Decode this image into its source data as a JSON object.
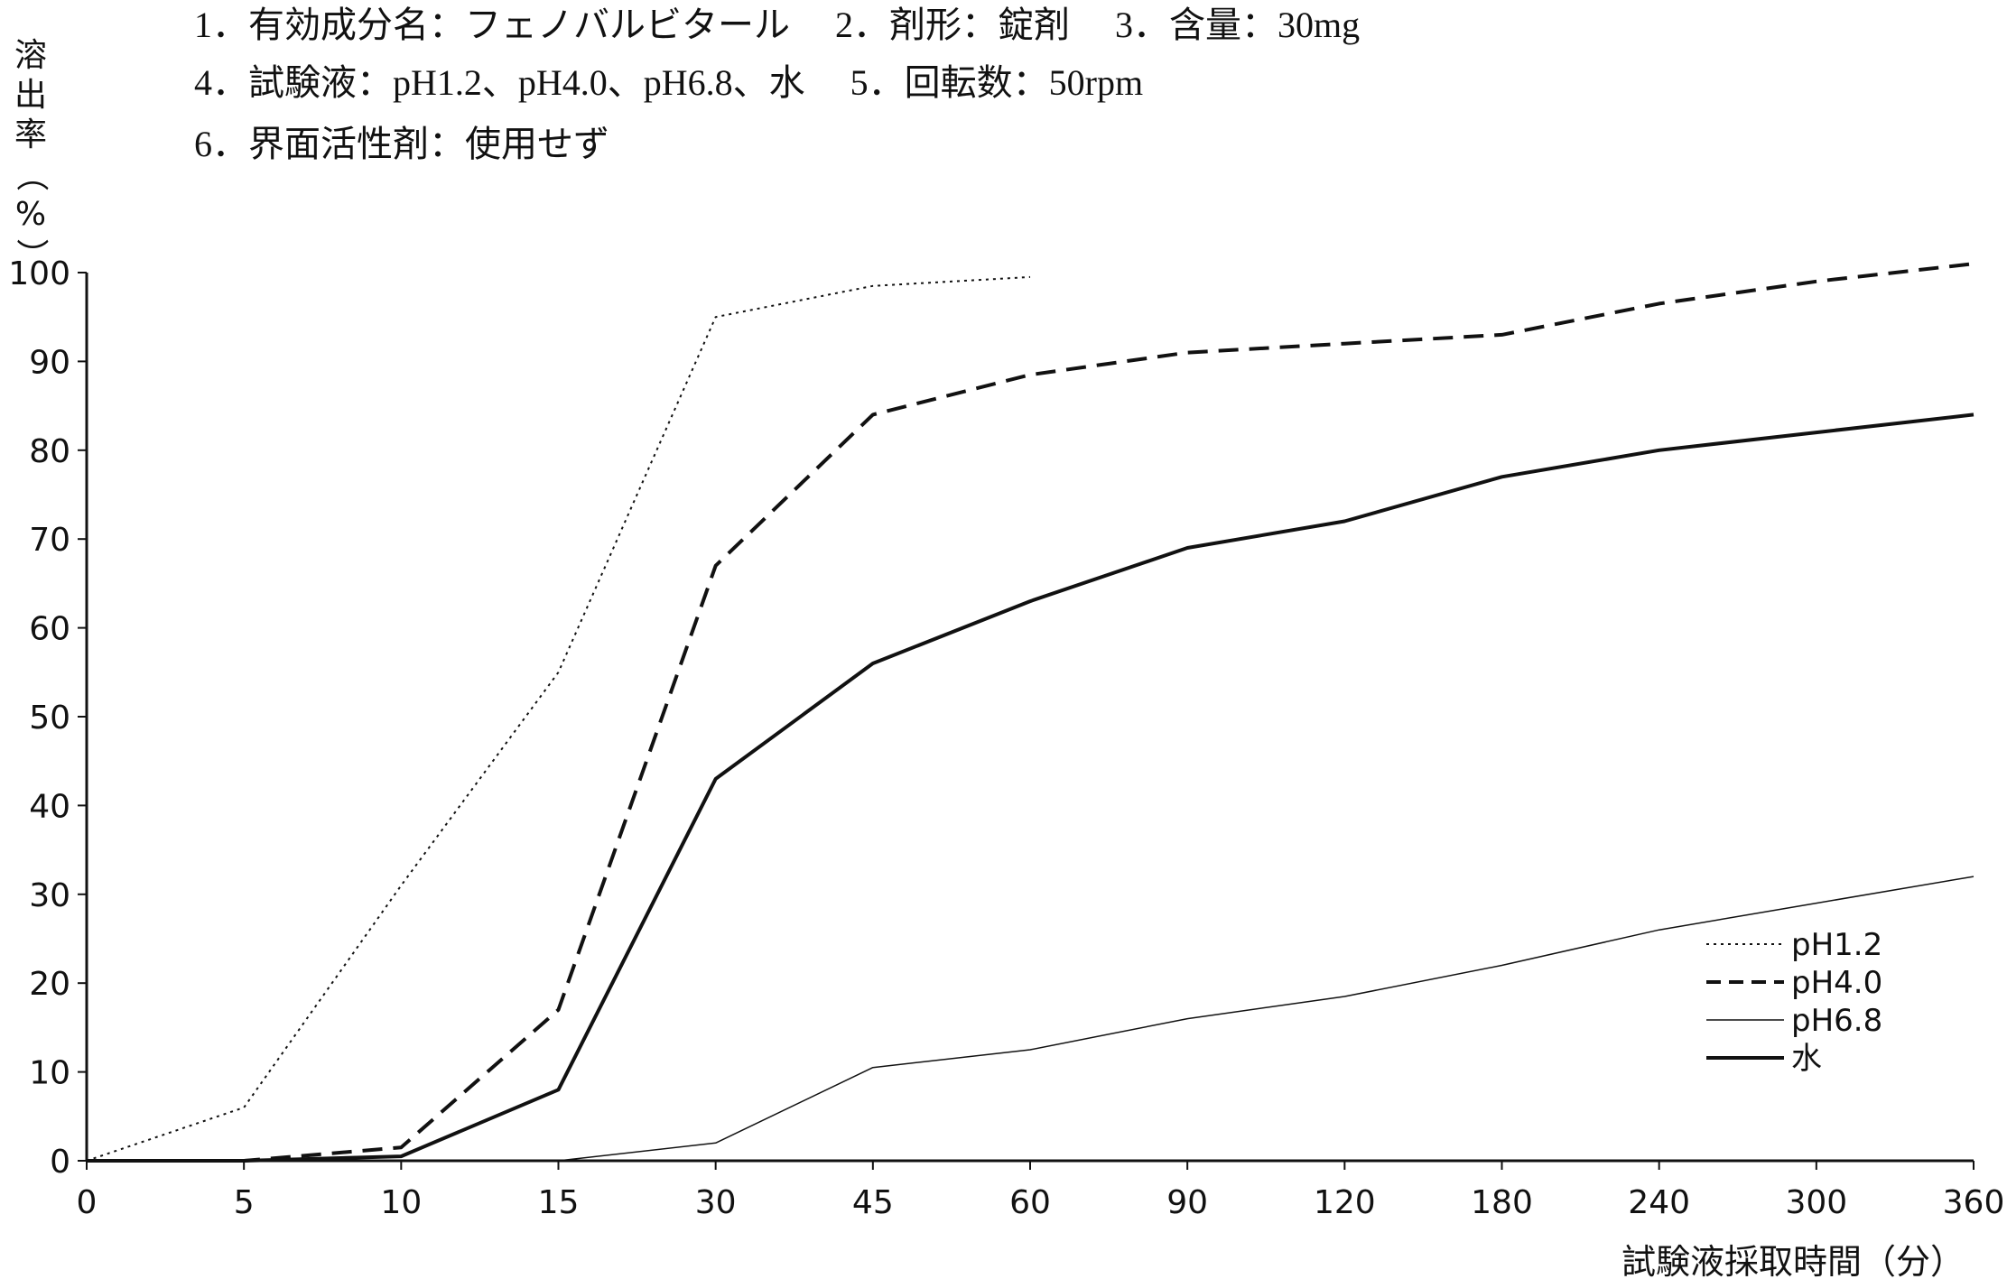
{
  "header": {
    "line1": "1．有効成分名：フェノバルビタール　 2．剤形：錠剤　 3．含量：30mg",
    "line2": "4．試験液：pH1.2、pH4.0、pH6.8、水　 5．回転数：50rpm",
    "line3": "6．界面活性剤：使用せず"
  },
  "chart_data": {
    "type": "line",
    "title": "",
    "xlabel": "試験液採取時間（分）",
    "ylabel": "溶出率（%）",
    "x_scale": "categorical",
    "categories": [
      "0",
      "5",
      "10",
      "15",
      "30",
      "45",
      "60",
      "90",
      "120",
      "180",
      "240",
      "300",
      "360"
    ],
    "ylim": [
      0,
      100
    ],
    "yticks": [
      0,
      10,
      20,
      30,
      40,
      50,
      60,
      70,
      80,
      90,
      100
    ],
    "grid": false,
    "legend_position": "bottom-right",
    "series": [
      {
        "name": "pH1.2",
        "style": "dotted",
        "stroke_width": 2,
        "color": "#111111",
        "values": [
          0,
          6,
          31,
          55,
          95,
          98.5,
          99.5,
          null,
          null,
          null,
          null,
          null,
          null
        ]
      },
      {
        "name": "pH4.0",
        "style": "dashed",
        "stroke_width": 4,
        "color": "#111111",
        "values": [
          0,
          0,
          1.5,
          17,
          67,
          84,
          88.5,
          91,
          92,
          93,
          96.5,
          99,
          101
        ]
      },
      {
        "name": "pH6.8",
        "style": "solid",
        "stroke_width": 1.5,
        "color": "#111111",
        "values": [
          0,
          0,
          0,
          0,
          2,
          10.5,
          12.5,
          16,
          18.5,
          22,
          26,
          29,
          32
        ]
      },
      {
        "name": "水",
        "style": "solid",
        "stroke_width": 4,
        "color": "#111111",
        "values": [
          0,
          0,
          0.5,
          8,
          43,
          56,
          63,
          69,
          72,
          77,
          80,
          82,
          84
        ]
      }
    ]
  }
}
